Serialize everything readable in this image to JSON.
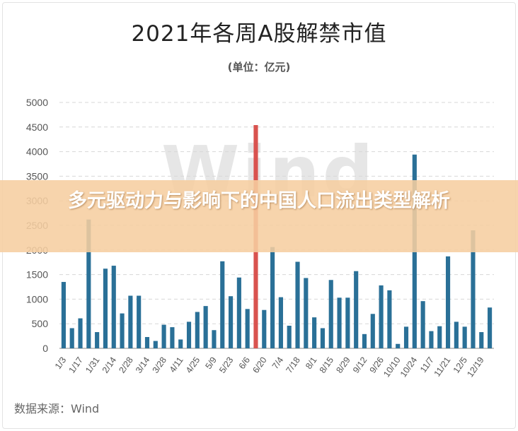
{
  "header": {
    "title": "2021年各周A股解禁市值",
    "subtitle": "(单位：亿元)"
  },
  "watermark": "Wind",
  "footer": {
    "source": "数据来源：Wind"
  },
  "banner": {
    "text": "多元驱动力与影响下的中国人口流出类型解析"
  },
  "colors": {
    "bar": "#2a7097",
    "highlight": "#d9534f",
    "grid": "#d7d7d7",
    "banner": "#f6cea0"
  },
  "chart_data": {
    "type": "bar",
    "title": "2021年各周A股解禁市值",
    "subtitle": "(单位：亿元)",
    "ylim": [
      0,
      5000
    ],
    "yticks": [
      0,
      500,
      1000,
      1500,
      2000,
      2500,
      3000,
      3500,
      4000,
      4500,
      5000
    ],
    "grid": true,
    "categories": [
      "1/3",
      "1/10",
      "1/17",
      "1/24",
      "1/31",
      "2/7",
      "2/14",
      "2/21",
      "2/28",
      "3/7",
      "3/14",
      "3/21",
      "3/28",
      "4/4",
      "4/11",
      "4/18",
      "4/25",
      "5/2",
      "5/9",
      "5/16",
      "5/23",
      "5/30",
      "6/6",
      "6/13",
      "6/20",
      "6/27",
      "7/4",
      "7/11",
      "7/18",
      "7/25",
      "8/1",
      "8/8",
      "8/15",
      "8/22",
      "8/29",
      "9/5",
      "9/12",
      "9/19",
      "9/26",
      "10/3",
      "10/10",
      "10/17",
      "10/24",
      "10/31",
      "11/7",
      "11/14",
      "11/21",
      "11/28",
      "12/5",
      "12/12",
      "12/19",
      "12/26"
    ],
    "xtick_labels": [
      "1/3",
      "1/17",
      "1/31",
      "2/14",
      "2/28",
      "3/14",
      "3/28",
      "4/11",
      "4/25",
      "5/9",
      "5/23",
      "6/6",
      "6/20",
      "7/4",
      "7/18",
      "8/1",
      "8/15",
      "8/29",
      "9/12",
      "9/26",
      "10/10",
      "10/24",
      "11/7",
      "11/21",
      "12/5",
      "12/19"
    ],
    "values": [
      1350,
      410,
      610,
      2620,
      330,
      1620,
      1680,
      710,
      1070,
      1070,
      230,
      150,
      480,
      430,
      180,
      540,
      740,
      860,
      370,
      1770,
      1060,
      1440,
      800,
      4540,
      780,
      2060,
      1040,
      460,
      1760,
      1430,
      630,
      410,
      1390,
      1030,
      1030,
      1570,
      290,
      700,
      1280,
      1180,
      90,
      440,
      3940,
      960,
      350,
      450,
      1870,
      540,
      440,
      2400,
      330,
      830
    ],
    "highlight_index": 23
  }
}
